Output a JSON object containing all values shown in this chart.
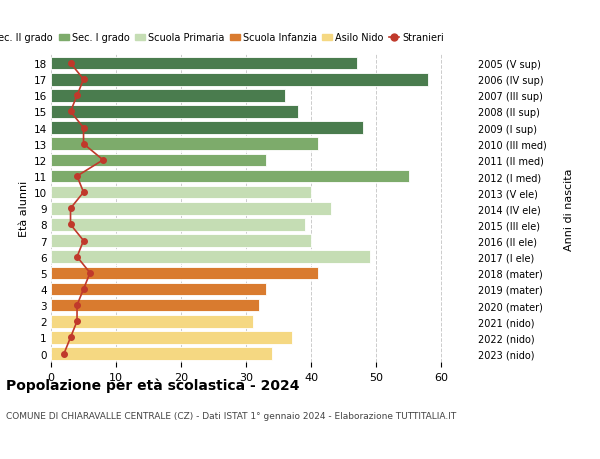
{
  "ages": [
    18,
    17,
    16,
    15,
    14,
    13,
    12,
    11,
    10,
    9,
    8,
    7,
    6,
    5,
    4,
    3,
    2,
    1,
    0
  ],
  "bar_values": [
    47,
    58,
    36,
    38,
    48,
    41,
    33,
    55,
    40,
    43,
    39,
    40,
    49,
    41,
    33,
    32,
    31,
    37,
    34
  ],
  "bar_colors": [
    "#4a7c4e",
    "#4a7c4e",
    "#4a7c4e",
    "#4a7c4e",
    "#4a7c4e",
    "#7dab6b",
    "#7dab6b",
    "#7dab6b",
    "#c5ddb4",
    "#c5ddb4",
    "#c5ddb4",
    "#c5ddb4",
    "#c5ddb4",
    "#d97b2f",
    "#d97b2f",
    "#d97b2f",
    "#f5d882",
    "#f5d882",
    "#f5d882"
  ],
  "stranieri_values": [
    3,
    5,
    4,
    3,
    5,
    5,
    8,
    4,
    5,
    3,
    3,
    5,
    4,
    6,
    5,
    4,
    4,
    3,
    2
  ],
  "right_labels": [
    "2005 (V sup)",
    "2006 (IV sup)",
    "2007 (III sup)",
    "2008 (II sup)",
    "2009 (I sup)",
    "2010 (III med)",
    "2011 (II med)",
    "2012 (I med)",
    "2013 (V ele)",
    "2014 (IV ele)",
    "2015 (III ele)",
    "2016 (II ele)",
    "2017 (I ele)",
    "2018 (mater)",
    "2019 (mater)",
    "2020 (mater)",
    "2021 (nido)",
    "2022 (nido)",
    "2023 (nido)"
  ],
  "ylabel_left": "Età alunni",
  "ylabel_right": "Anni di nascita",
  "xlim": [
    0,
    65
  ],
  "xticks": [
    0,
    10,
    20,
    30,
    40,
    50,
    60
  ],
  "title": "Popolazione per età scolastica - 2024",
  "subtitle": "COMUNE DI CHIARAVALLE CENTRALE (CZ) - Dati ISTAT 1° gennaio 2024 - Elaborazione TUTTITALIA.IT",
  "legend_labels": [
    "Sec. II grado",
    "Sec. I grado",
    "Scuola Primaria",
    "Scuola Infanzia",
    "Asilo Nido",
    "Stranieri"
  ],
  "legend_colors": [
    "#4a7c4e",
    "#7dab6b",
    "#c5ddb4",
    "#d97b2f",
    "#f5d882",
    "#c0392b"
  ],
  "bg_color": "#ffffff",
  "grid_color": "#cccccc",
  "stranieri_color": "#c0392b",
  "bar_height": 0.78
}
